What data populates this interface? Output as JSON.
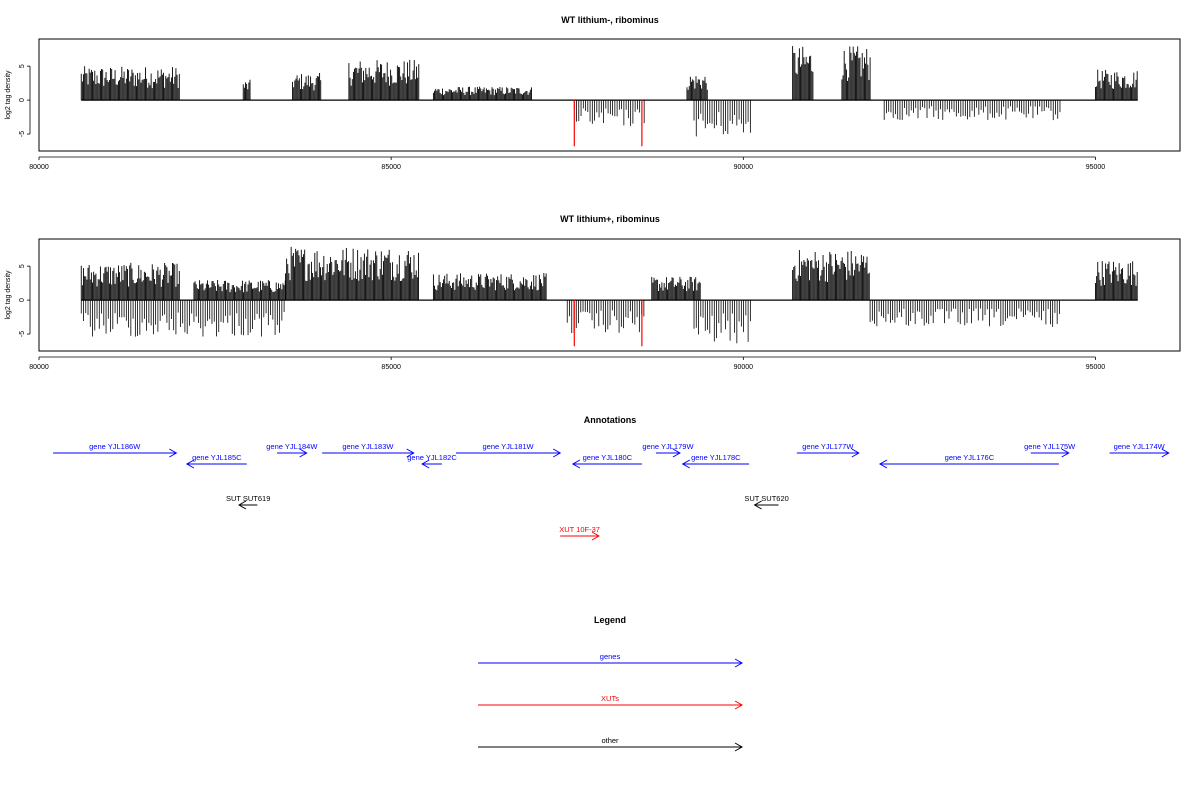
{
  "chart_data": [
    {
      "type": "bar",
      "title": "WT lithium-, ribominus",
      "ylabel": "log2 tag density",
      "xlabel": "",
      "xlim": [
        80000,
        96200
      ],
      "ylim": [
        -7.5,
        9
      ],
      "x_ticks": [
        "80000",
        "85000",
        "90000",
        "95000"
      ],
      "x_tick_values": [
        80000,
        85000,
        90000,
        95000
      ],
      "y_ticks": [
        "-5",
        "0",
        "5"
      ],
      "y_tick_values": [
        -5,
        0,
        5
      ],
      "grid": false,
      "positive_regions": [
        {
          "start": 80600,
          "end": 82000,
          "max": 5
        },
        {
          "start": 82900,
          "end": 83000,
          "max": 3
        },
        {
          "start": 83600,
          "end": 84000,
          "max": 4
        },
        {
          "start": 84400,
          "end": 85400,
          "max": 6
        },
        {
          "start": 85600,
          "end": 87000,
          "max": 2
        },
        {
          "start": 89200,
          "end": 89500,
          "max": 4
        },
        {
          "start": 90700,
          "end": 91000,
          "max": 8
        },
        {
          "start": 91400,
          "end": 91800,
          "max": 8
        },
        {
          "start": 95000,
          "end": 95600,
          "max": 4.5
        }
      ],
      "negative_regions": [
        {
          "start": 87600,
          "end": 88600,
          "min": -4
        },
        {
          "start": 89300,
          "end": 90100,
          "min": -5.5
        },
        {
          "start": 92000,
          "end": 94500,
          "min": -3
        }
      ],
      "highlight_lines": [
        {
          "x": 87600,
          "min": -6.8,
          "color": "#ff0000"
        },
        {
          "x": 88560,
          "min": -6.8,
          "color": "#ff0000"
        }
      ]
    },
    {
      "type": "bar",
      "title": "WT lithium+, ribominus",
      "ylabel": "log2 tag density",
      "xlabel": "",
      "xlim": [
        80000,
        96200
      ],
      "ylim": [
        -7.5,
        9
      ],
      "x_ticks": [
        "80000",
        "85000",
        "90000",
        "95000"
      ],
      "x_tick_values": [
        80000,
        85000,
        90000,
        95000
      ],
      "y_ticks": [
        "-5",
        "0",
        "5"
      ],
      "y_tick_values": [
        -5,
        0,
        5
      ],
      "grid": false,
      "positive_regions": [
        {
          "start": 80600,
          "end": 82000,
          "max": 5.5
        },
        {
          "start": 82200,
          "end": 83500,
          "max": 3
        },
        {
          "start": 83500,
          "end": 85400,
          "max": 8
        },
        {
          "start": 85600,
          "end": 87200,
          "max": 4
        },
        {
          "start": 88700,
          "end": 89400,
          "max": 3.5
        },
        {
          "start": 90700,
          "end": 91800,
          "max": 7.5
        },
        {
          "start": 95000,
          "end": 95600,
          "max": 6
        }
      ],
      "negative_regions": [
        {
          "start": 80600,
          "end": 83500,
          "min": -5.5
        },
        {
          "start": 87500,
          "end": 88600,
          "min": -5
        },
        {
          "start": 89300,
          "end": 90100,
          "min": -6.5
        },
        {
          "start": 91800,
          "end": 94500,
          "min": -4
        }
      ],
      "highlight_lines": [
        {
          "x": 87600,
          "min": -6.8,
          "color": "#ff0000"
        },
        {
          "x": 88560,
          "min": -6.8,
          "color": "#ff0000"
        }
      ]
    }
  ],
  "annotations": {
    "title": "Annotations",
    "colors": {
      "gene": "#0000ff",
      "xut": "#ff0000",
      "other": "#000000"
    },
    "genes": [
      {
        "label": "gene YJL186W",
        "start": 80200,
        "end": 81950,
        "dir": "right"
      },
      {
        "label": "gene YJL185C",
        "start": 82100,
        "end": 82950,
        "dir": "left"
      },
      {
        "label": "gene YJL184W",
        "start": 83380,
        "end": 83800,
        "dir": "right"
      },
      {
        "label": "gene YJL183W",
        "start": 84020,
        "end": 85320,
        "dir": "right"
      },
      {
        "label": "gene YJL182C",
        "start": 85440,
        "end": 85720,
        "dir": "left"
      },
      {
        "label": "gene YJL181W",
        "start": 85920,
        "end": 87400,
        "dir": "right"
      },
      {
        "label": "gene YJL180C",
        "start": 87580,
        "end": 88560,
        "dir": "left"
      },
      {
        "label": "gene YJL179W",
        "start": 88760,
        "end": 89100,
        "dir": "right"
      },
      {
        "label": "gene YJL178C",
        "start": 89140,
        "end": 90080,
        "dir": "left"
      },
      {
        "label": "gene YJL177W",
        "start": 90760,
        "end": 91640,
        "dir": "right"
      },
      {
        "label": "gene YJL176C",
        "start": 91940,
        "end": 94480,
        "dir": "left"
      },
      {
        "label": "gene YJL175W",
        "start": 94080,
        "end": 94620,
        "dir": "right"
      },
      {
        "label": "gene YJL174W",
        "start": 95200,
        "end": 96040,
        "dir": "right"
      }
    ],
    "others": [
      {
        "label": "SUT SUT619",
        "start": 82840,
        "end": 83100,
        "dir": "left"
      },
      {
        "label": "SUT SUT620",
        "start": 90160,
        "end": 90500,
        "dir": "left"
      }
    ],
    "xuts": [
      {
        "label": "XUT 10F-37",
        "start": 87400,
        "end": 87950,
        "dir": "right"
      }
    ]
  },
  "legend": {
    "title": "Legend",
    "items": [
      {
        "label": "genes",
        "color": "#0000ff"
      },
      {
        "label": "XUTs",
        "color": "#ff0000"
      },
      {
        "label": "other",
        "color": "#000000"
      }
    ]
  }
}
